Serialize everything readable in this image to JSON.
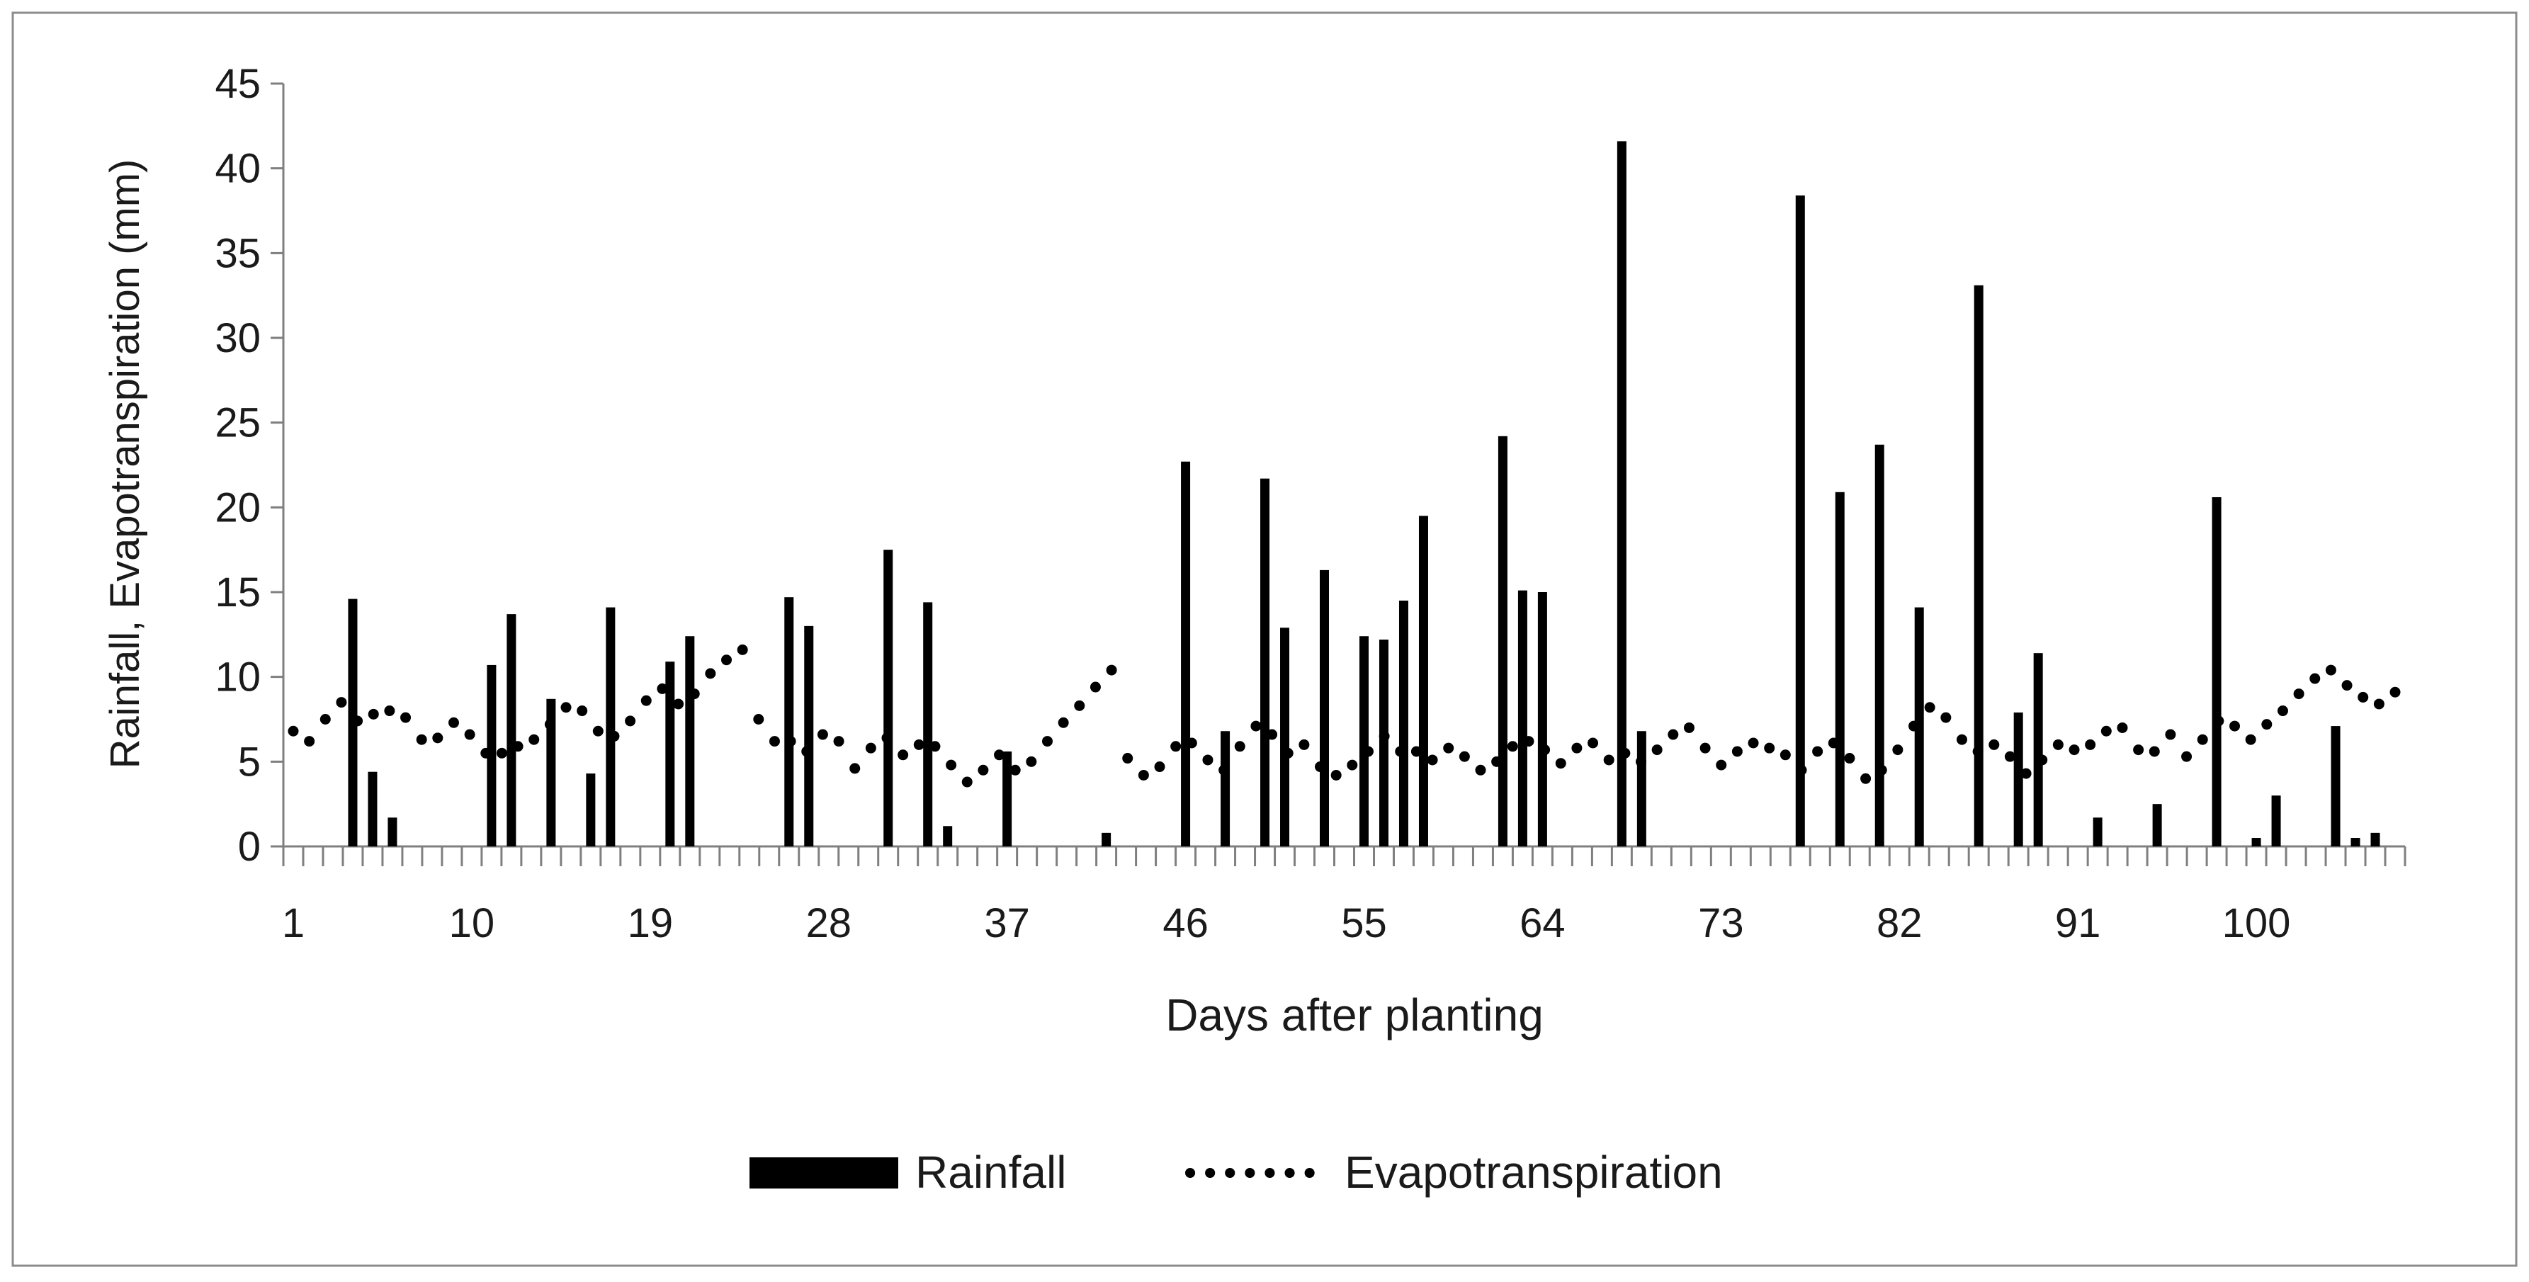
{
  "chart_data": {
    "type": "bar+line",
    "title": "",
    "xlabel": "Days after planting",
    "ylabel": "Rainfall, Evapotranspiration (mm)",
    "ylim": [
      0,
      45
    ],
    "xlim": [
      1,
      107
    ],
    "y_ticks": [
      "0",
      "5",
      "10",
      "15",
      "20",
      "25",
      "30",
      "35",
      "40",
      "45"
    ],
    "x_tick_labels": [
      {
        "day": 1,
        "label": "1"
      },
      {
        "day": 10,
        "label": "10"
      },
      {
        "day": 19,
        "label": "19"
      },
      {
        "day": 28,
        "label": "28"
      },
      {
        "day": 37,
        "label": "37"
      },
      {
        "day": 46,
        "label": "46"
      },
      {
        "day": 55,
        "label": "55"
      },
      {
        "day": 64,
        "label": "64"
      },
      {
        "day": 73,
        "label": "73"
      },
      {
        "day": 82,
        "label": "82"
      },
      {
        "day": 91,
        "label": "91"
      },
      {
        "day": 100,
        "label": "100"
      }
    ],
    "grid": false,
    "legend_position": "bottom",
    "legend": [
      {
        "name": "Rainfall",
        "style": "bar"
      },
      {
        "name": "Evapotranspiration",
        "style": "dotted-line"
      }
    ],
    "rainfall": [
      {
        "day": 4,
        "value": 14.6
      },
      {
        "day": 5,
        "value": 4.4
      },
      {
        "day": 6,
        "value": 1.7
      },
      {
        "day": 11,
        "value": 10.7
      },
      {
        "day": 12,
        "value": 13.7
      },
      {
        "day": 14,
        "value": 8.7
      },
      {
        "day": 16,
        "value": 4.3
      },
      {
        "day": 17,
        "value": 14.1
      },
      {
        "day": 20,
        "value": 10.9
      },
      {
        "day": 21,
        "value": 12.4
      },
      {
        "day": 26,
        "value": 14.7
      },
      {
        "day": 27,
        "value": 13.0
      },
      {
        "day": 31,
        "value": 17.5
      },
      {
        "day": 33,
        "value": 14.4
      },
      {
        "day": 34,
        "value": 1.2
      },
      {
        "day": 37,
        "value": 5.6
      },
      {
        "day": 42,
        "value": 0.8
      },
      {
        "day": 46,
        "value": 22.7
      },
      {
        "day": 48,
        "value": 6.8
      },
      {
        "day": 50,
        "value": 21.7
      },
      {
        "day": 51,
        "value": 12.9
      },
      {
        "day": 53,
        "value": 16.3
      },
      {
        "day": 55,
        "value": 12.4
      },
      {
        "day": 56,
        "value": 12.2
      },
      {
        "day": 57,
        "value": 14.5
      },
      {
        "day": 58,
        "value": 19.5
      },
      {
        "day": 62,
        "value": 24.2
      },
      {
        "day": 63,
        "value": 15.1
      },
      {
        "day": 64,
        "value": 15.0
      },
      {
        "day": 68,
        "value": 41.6
      },
      {
        "day": 69,
        "value": 6.8
      },
      {
        "day": 77,
        "value": 38.4
      },
      {
        "day": 79,
        "value": 20.9
      },
      {
        "day": 81,
        "value": 23.7
      },
      {
        "day": 83,
        "value": 14.1
      },
      {
        "day": 86,
        "value": 33.1
      },
      {
        "day": 88,
        "value": 7.9
      },
      {
        "day": 89,
        "value": 11.4
      },
      {
        "day": 92,
        "value": 1.7
      },
      {
        "day": 95,
        "value": 2.5
      },
      {
        "day": 98,
        "value": 20.6
      },
      {
        "day": 100,
        "value": 0.5
      },
      {
        "day": 101,
        "value": 3.0
      },
      {
        "day": 104,
        "value": 7.1
      },
      {
        "day": 105,
        "value": 0.5
      },
      {
        "day": 106,
        "value": 0.8
      }
    ],
    "evapotranspiration": [
      6.8,
      6.2,
      7.5,
      8.5,
      7.4,
      7.8,
      8.0,
      7.6,
      6.3,
      6.4,
      7.3,
      6.6,
      5.5,
      5.5,
      5.9,
      6.3,
      7.2,
      8.2,
      8.0,
      6.8,
      6.5,
      7.4,
      8.6,
      9.3,
      8.4,
      9.0,
      10.2,
      11.0,
      11.6,
      7.5,
      6.2,
      6.2,
      5.6,
      6.6,
      6.2,
      4.6,
      5.8,
      6.4,
      5.4,
      6.0,
      5.9,
      4.8,
      3.8,
      4.5,
      5.4,
      4.5,
      5.0,
      6.2,
      7.3,
      8.3,
      9.4,
      10.4,
      5.2,
      4.2,
      4.7,
      5.9,
      6.1,
      5.1,
      4.5,
      5.9,
      7.1,
      6.6,
      5.5,
      6.0,
      4.7,
      4.2,
      4.8,
      5.6,
      6.5,
      5.6,
      5.6,
      5.1,
      5.8,
      5.3,
      4.5,
      5.0,
      5.9,
      6.2,
      5.7,
      4.9,
      5.8,
      6.1,
      5.1,
      5.5,
      5.0,
      5.7,
      6.6,
      7.0,
      5.8,
      4.8,
      5.6,
      6.1,
      5.8,
      5.4,
      4.5,
      5.6,
      6.1,
      5.2,
      4.0,
      4.5,
      5.7,
      7.1,
      8.2,
      7.6,
      6.3,
      5.6,
      6.0,
      5.3,
      4.3,
      5.1,
      6.0,
      5.7,
      6.0,
      6.8,
      7.0,
      5.7,
      5.6,
      6.6,
      5.3,
      6.3,
      7.4,
      7.1,
      6.3,
      7.2,
      8.0,
      9.0,
      9.9,
      10.4,
      9.5,
      8.8,
      8.4,
      9.1
    ]
  }
}
